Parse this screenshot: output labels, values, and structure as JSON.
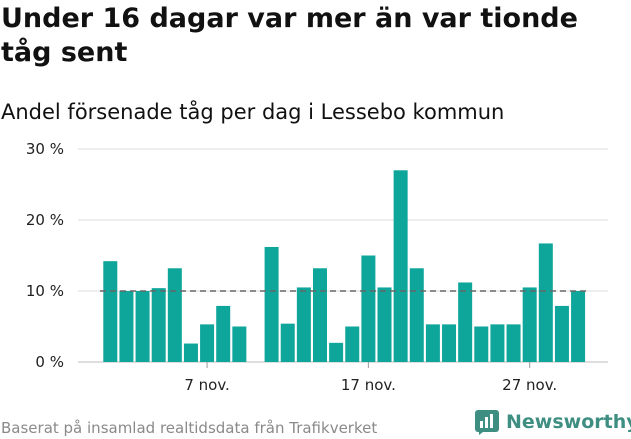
{
  "header": {
    "title": "Under 16 dagar var mer än var tionde tåg sent",
    "subtitle": "Andel försenade tåg per dag i Lessebo kommun"
  },
  "footer": {
    "source": "Baserat på insamlad realtidsdata från Trafikverket",
    "brand": "Newsworthy"
  },
  "colors": {
    "bar": "#0ea59a",
    "reference_line": "#666666",
    "grid": "#dcdcdc",
    "brand": "#3e8f82"
  },
  "chart_data": {
    "type": "bar",
    "title": "Under 16 dagar var mer än var tionde tåg sent",
    "subtitle": "Andel försenade tåg per dag i Lessebo kommun",
    "y_unit": "%",
    "ylim": [
      0,
      30
    ],
    "yticks": [
      0,
      10,
      20,
      30
    ],
    "ytick_labels": [
      "0 %",
      "10 %",
      "20 %",
      "30 %"
    ],
    "grid": true,
    "x_axis": "days of November (1–31), gaps are days without data",
    "xtick_labels": [
      {
        "day": 7,
        "label": "7 nov."
      },
      {
        "day": 17,
        "label": "17 nov."
      },
      {
        "day": 27,
        "label": "27 nov."
      }
    ],
    "reference_line": 10,
    "bars": [
      {
        "day": 1,
        "value": 14.2
      },
      {
        "day": 2,
        "value": 10.0
      },
      {
        "day": 3,
        "value": 10.0
      },
      {
        "day": 4,
        "value": 10.4
      },
      {
        "day": 5,
        "value": 13.2
      },
      {
        "day": 6,
        "value": 2.6
      },
      {
        "day": 7,
        "value": 5.3
      },
      {
        "day": 8,
        "value": 7.9
      },
      {
        "day": 9,
        "value": 5.0
      },
      {
        "day": 11,
        "value": 16.2
      },
      {
        "day": 12,
        "value": 5.4
      },
      {
        "day": 13,
        "value": 10.5
      },
      {
        "day": 14,
        "value": 13.2
      },
      {
        "day": 15,
        "value": 2.7
      },
      {
        "day": 16,
        "value": 5.0
      },
      {
        "day": 17,
        "value": 15.0
      },
      {
        "day": 18,
        "value": 10.5
      },
      {
        "day": 19,
        "value": 27.0
      },
      {
        "day": 20,
        "value": 13.2
      },
      {
        "day": 21,
        "value": 5.3
      },
      {
        "day": 22,
        "value": 5.3
      },
      {
        "day": 23,
        "value": 11.2
      },
      {
        "day": 24,
        "value": 5.0
      },
      {
        "day": 25,
        "value": 5.3
      },
      {
        "day": 26,
        "value": 5.3
      },
      {
        "day": 27,
        "value": 10.5
      },
      {
        "day": 28,
        "value": 16.7
      },
      {
        "day": 29,
        "value": 7.9
      },
      {
        "day": 30,
        "value": 10.0
      }
    ]
  }
}
